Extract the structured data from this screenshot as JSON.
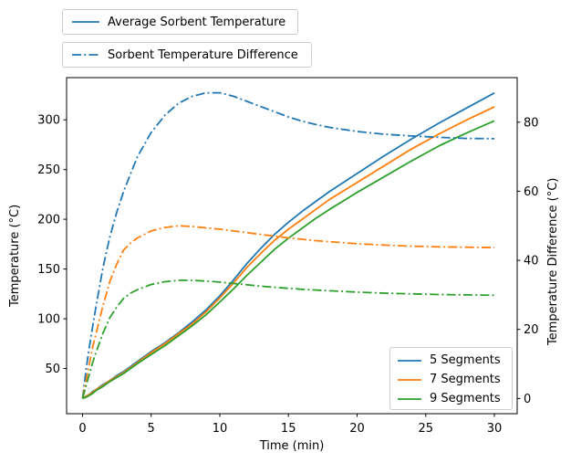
{
  "colors": {
    "blue": "#1f77b4",
    "orange": "#ff7f0e",
    "green": "#2ca02c",
    "axis": "#000000",
    "legend_border": "#cccccc"
  },
  "legends": {
    "top": [
      {
        "label": "Average Sorbent Temperature",
        "line_style": "solid",
        "color": "#1f77b4"
      },
      {
        "label": "Sorbent Temperature Difference",
        "line_style": "dashdot",
        "color": "#1f77b4"
      }
    ],
    "segments": [
      {
        "label": "5 Segments",
        "color": "#1f77b4"
      },
      {
        "label": "7 Segments",
        "color": "#ff7f0e"
      },
      {
        "label": "9 Segments",
        "color": "#2ca02c"
      }
    ]
  },
  "chart_data": {
    "type": "line",
    "title": "",
    "xlabel": "Time (min)",
    "ylabel_left": "Temperature (°C)",
    "ylabel_right": "Temperature Difference (°C)",
    "grid": false,
    "x_ticks": [
      0,
      5,
      10,
      15,
      20,
      25,
      30
    ],
    "y_left_ticks": [
      50,
      100,
      150,
      200,
      250,
      300
    ],
    "y_right_ticks": [
      0,
      20,
      40,
      60,
      80
    ],
    "xlim": [
      -1.16,
      31.66
    ],
    "ylim_left": [
      4.6,
      342.4
    ],
    "ylim_right": [
      -4.4,
      92.9
    ],
    "x": [
      0,
      0.25,
      0.5,
      0.75,
      1,
      1.5,
      2,
      2.5,
      3,
      3.5,
      4,
      5,
      6,
      7,
      8,
      9,
      10,
      11,
      12,
      13,
      14,
      15,
      16,
      17,
      18,
      20,
      22,
      24,
      26,
      28,
      30
    ],
    "series": [
      {
        "name": "5 Segments",
        "measure": "Average Sorbent Temperature",
        "axis": "left",
        "style": "solid",
        "color": "#1f77b4",
        "values": [
          20,
          22,
          24,
          27,
          29,
          34,
          38,
          43,
          47,
          52,
          57,
          67,
          76,
          86,
          97,
          109,
          123,
          139,
          156,
          171,
          185,
          197,
          208,
          218,
          228,
          246,
          264,
          281,
          297,
          312,
          327
        ]
      },
      {
        "name": "7 Segments",
        "measure": "Average Sorbent Temperature",
        "axis": "left",
        "style": "solid",
        "color": "#ff7f0e",
        "values": [
          20,
          22,
          24,
          26,
          29,
          33,
          38,
          42,
          46,
          51,
          56,
          66,
          75,
          85,
          95,
          107,
          121,
          136,
          152,
          166,
          179,
          190,
          200,
          210,
          220,
          237,
          254,
          271,
          286,
          300,
          313
        ]
      },
      {
        "name": "9 Segments",
        "measure": "Average Sorbent Temperature",
        "axis": "left",
        "style": "solid",
        "color": "#2ca02c",
        "values": [
          20,
          21,
          23,
          25,
          28,
          32,
          37,
          41,
          45,
          50,
          55,
          64,
          73,
          83,
          93,
          104,
          117,
          130,
          144,
          157,
          170,
          181,
          191,
          201,
          210,
          227,
          243,
          259,
          274,
          287,
          299
        ]
      },
      {
        "name": "5 Segments",
        "measure": "Sorbent Temperature Difference",
        "axis": "right",
        "style": "dashdot",
        "color": "#1f77b4",
        "values": [
          0,
          8,
          15,
          21,
          27,
          38,
          47,
          54,
          60,
          65,
          70,
          77,
          82,
          85.5,
          87.5,
          88.5,
          88.5,
          87.5,
          86,
          84.5,
          83,
          81.5,
          80.3,
          79.3,
          78.5,
          77.3,
          76.5,
          76,
          75.6,
          75.3,
          75.2
        ]
      },
      {
        "name": "7 Segments",
        "measure": "Sorbent Temperature Difference",
        "axis": "right",
        "style": "dashdot",
        "color": "#ff7f0e",
        "values": [
          0,
          5,
          10,
          15,
          19,
          27,
          34,
          39,
          43,
          45,
          46.5,
          48.5,
          49.5,
          50,
          49.8,
          49.4,
          49,
          48.5,
          48,
          47.5,
          47,
          46.5,
          46.1,
          45.7,
          45.4,
          44.8,
          44.4,
          44.1,
          43.9,
          43.8,
          43.7
        ]
      },
      {
        "name": "9 Segments",
        "measure": "Sorbent Temperature Difference",
        "axis": "right",
        "style": "dashdot",
        "color": "#2ca02c",
        "values": [
          0,
          3.5,
          7,
          10.5,
          13.5,
          19,
          23.5,
          26.5,
          29,
          30.5,
          31.5,
          33,
          33.8,
          34.2,
          34.2,
          34,
          33.7,
          33.3,
          32.9,
          32.5,
          32.2,
          31.9,
          31.6,
          31.4,
          31.2,
          30.8,
          30.5,
          30.3,
          30.1,
          30,
          29.9
        ]
      }
    ]
  }
}
